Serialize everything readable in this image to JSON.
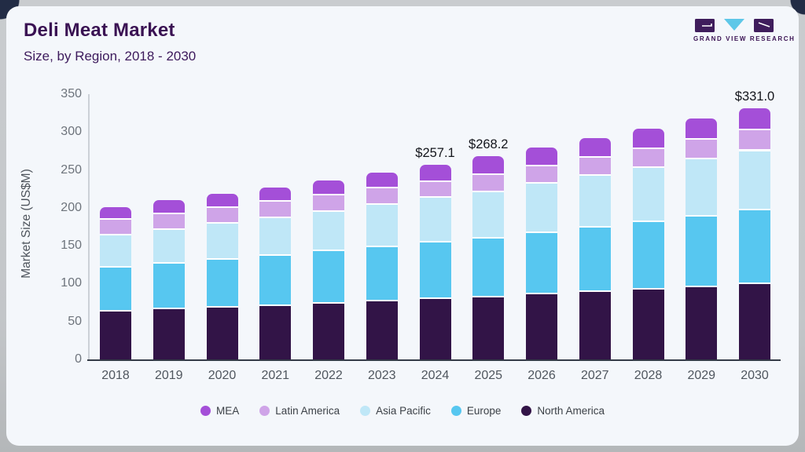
{
  "header": {
    "title": "Deli Meat Market",
    "subtitle": "Size, by Region, 2018 - 2030"
  },
  "logo": {
    "text": "GRAND VIEW RESEARCH",
    "block_color": "#3f1d5c",
    "triangle_color": "#5ec7e8"
  },
  "theme": {
    "card_bg": "#f4f7fb",
    "frame_gray": "#c3c6c9",
    "frame_navy": "#222c45",
    "title_color": "#3a1253",
    "x_axis_color": "#343b47",
    "y_axis_color": "#ccd1d7",
    "tick_color": "#6e747c"
  },
  "chart_data": {
    "type": "bar",
    "stacked": true,
    "title": "Deli Meat Market",
    "subtitle": "Size, by Region, 2018 - 2030",
    "xlabel": "",
    "ylabel": "Market Size (US$M)",
    "ylim": [
      0,
      350
    ],
    "ytick_step": 50,
    "grid": false,
    "legend_position": "bottom",
    "categories": [
      "2018",
      "2019",
      "2020",
      "2021",
      "2022",
      "2023",
      "2024",
      "2025",
      "2026",
      "2027",
      "2028",
      "2029",
      "2030"
    ],
    "series": [
      {
        "name": "MEA",
        "color": "#a44fd8",
        "values": [
          15.2,
          15.7,
          16.3,
          17.0,
          17.8,
          18.9,
          20.7,
          22.8,
          22.5,
          23.1,
          24.5,
          25.7,
          27.0
        ]
      },
      {
        "name": "Latin America",
        "color": "#cfa4e8",
        "values": [
          20.5,
          20.8,
          21.0,
          21.2,
          21.4,
          21.7,
          21.5,
          22.3,
          23.5,
          24.7,
          25.3,
          26.0,
          27.0
        ]
      },
      {
        "name": "Asia Pacific",
        "color": "#bfe7f7",
        "values": [
          42.0,
          44.5,
          47.0,
          49.5,
          52.3,
          55.6,
          58.8,
          61.8,
          64.9,
          67.7,
          71.5,
          75.2,
          78.0
        ]
      },
      {
        "name": "Europe",
        "color": "#57c7f0",
        "values": [
          58.2,
          60.8,
          63.5,
          66.0,
          69.0,
          71.5,
          74.5,
          77.3,
          81.3,
          85.5,
          89.0,
          93.0,
          97.5
        ]
      },
      {
        "name": "North America",
        "color": "#321447",
        "values": [
          65.5,
          68.0,
          70.5,
          73.0,
          75.5,
          78.5,
          81.6,
          84.0,
          87.5,
          90.8,
          94.0,
          97.5,
          101.5
        ]
      }
    ],
    "annotations": [
      {
        "category": "2024",
        "text": "$257.1"
      },
      {
        "category": "2025",
        "text": "$268.2"
      },
      {
        "category": "2030",
        "text": "$331.0"
      }
    ]
  }
}
